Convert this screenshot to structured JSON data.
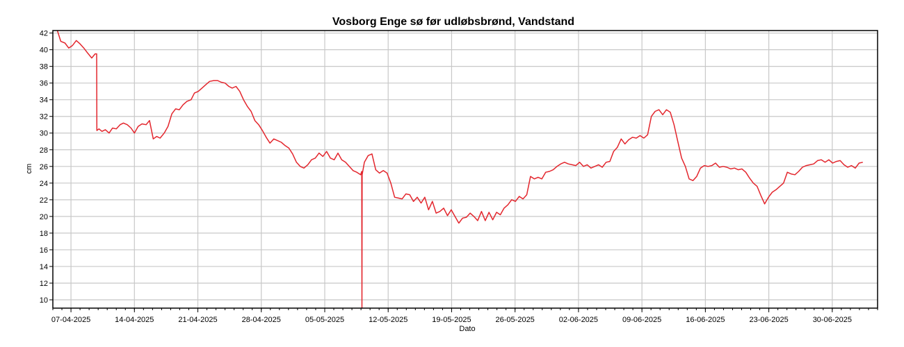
{
  "chart_data": {
    "type": "line",
    "title": "Vosborg Enge sø før udløbsbrønd, Vandstand",
    "xlabel": "Dato",
    "ylabel": "cm",
    "ylim": [
      9,
      42.3
    ],
    "xlim": [
      "2025-04-05",
      "2025-07-05"
    ],
    "y_ticks": [
      10,
      12,
      14,
      16,
      18,
      20,
      22,
      24,
      26,
      28,
      30,
      32,
      34,
      36,
      38,
      40,
      42
    ],
    "x_ticks": [
      "07-04-2025",
      "14-04-2025",
      "21-04-2025",
      "28-04-2025",
      "05-05-2025",
      "12-05-2025",
      "19-05-2025",
      "26-05-2025",
      "02-06-2025",
      "09-06-2025",
      "16-06-2025",
      "23-06-2025",
      "30-06-2025"
    ],
    "grid": true,
    "line_color": "#e3262d",
    "series": [
      {
        "x": [
          "2025-04-05 12:00",
          "2025-04-05 21:00",
          "2025-04-06 08:00",
          "2025-04-06 18:00",
          "2025-04-07 04:00",
          "2025-04-07 14:00",
          "2025-04-08 00:00",
          "2025-04-08 10:00",
          "2025-04-08 20:00",
          "2025-04-09 07:00",
          "2025-04-09 16:00",
          "2025-04-09 20:00",
          "2025-04-09 20:30",
          "2025-04-10 02:00",
          "2025-04-10 10:00",
          "2025-04-10 19:00",
          "2025-04-11 05:00",
          "2025-04-11 14:00",
          "2025-04-12 00:00",
          "2025-04-12 10:00",
          "2025-04-12 19:00",
          "2025-04-13 05:00",
          "2025-04-13 15:00",
          "2025-04-14 00:00",
          "2025-04-14 10:00",
          "2025-04-14 20:00",
          "2025-04-15 07:00",
          "2025-04-15 16:00",
          "2025-04-16 02:00",
          "2025-04-16 11:00",
          "2025-04-16 20:00",
          "2025-04-17 07:00",
          "2025-04-17 17:00",
          "2025-04-18 03:00",
          "2025-04-18 13:00",
          "2025-04-18 23:00",
          "2025-04-19 09:00",
          "2025-04-19 19:00",
          "2025-04-20 06:00",
          "2025-04-20 15:00",
          "2025-04-21 01:00",
          "2025-04-21 11:00",
          "2025-04-21 21:00",
          "2025-04-22 07:00",
          "2025-04-22 18:00",
          "2025-04-23 04:00",
          "2025-04-23 14:00",
          "2025-04-24 00:00",
          "2025-04-24 10:00",
          "2025-04-24 19:00",
          "2025-04-25 05:00",
          "2025-04-25 15:00",
          "2025-04-26 01:00",
          "2025-04-26 11:00",
          "2025-04-26 21:00",
          "2025-04-27 07:00",
          "2025-04-27 17:00",
          "2025-04-28 03:00",
          "2025-04-28 13:00",
          "2025-04-28 23:00",
          "2025-04-29 09:00",
          "2025-04-29 19:00",
          "2025-04-30 05:00",
          "2025-04-30 15:00",
          "2025-05-01 01:00",
          "2025-05-01 11:00",
          "2025-05-01 21:00",
          "2025-05-02 07:00",
          "2025-05-02 17:00",
          "2025-05-03 03:00",
          "2025-05-03 13:00",
          "2025-05-03 23:00",
          "2025-05-04 09:00",
          "2025-05-04 19:00",
          "2025-05-05 05:00",
          "2025-05-05 15:00",
          "2025-05-06 01:00",
          "2025-05-06 11:00",
          "2025-05-06 21:00",
          "2025-05-07 07:00",
          "2025-05-07 17:00",
          "2025-05-08 03:00",
          "2025-05-08 13:00",
          "2025-05-08 23:00",
          "2025-05-09 02:00",
          "2025-05-09 02:30",
          "2025-05-09 03:00",
          "2025-05-09 09:00",
          "2025-05-09 19:00",
          "2025-05-10 05:00",
          "2025-05-10 15:00",
          "2025-05-11 01:00",
          "2025-05-11 11:00",
          "2025-05-11 21:00",
          "2025-05-12 07:00",
          "2025-05-12 17:00",
          "2025-05-13 03:00",
          "2025-05-13 13:00",
          "2025-05-13 23:00",
          "2025-05-14 09:00",
          "2025-05-14 19:00",
          "2025-05-15 05:00",
          "2025-05-15 15:00",
          "2025-05-16 01:00",
          "2025-05-16 11:00",
          "2025-05-16 21:00",
          "2025-05-17 07:00",
          "2025-05-17 17:00",
          "2025-05-18 03:00",
          "2025-05-18 13:00",
          "2025-05-18 23:00",
          "2025-05-19 09:00",
          "2025-05-19 19:00",
          "2025-05-20 05:00",
          "2025-05-20 15:00",
          "2025-05-21 01:00",
          "2025-05-21 11:00",
          "2025-05-21 21:00",
          "2025-05-22 07:00",
          "2025-05-22 17:00",
          "2025-05-23 03:00",
          "2025-05-23 13:00",
          "2025-05-23 23:00",
          "2025-05-24 09:00",
          "2025-05-24 19:00",
          "2025-05-25 05:00",
          "2025-05-25 15:00",
          "2025-05-26 01:00",
          "2025-05-26 11:00",
          "2025-05-26 21:00",
          "2025-05-27 07:00",
          "2025-05-27 17:00",
          "2025-05-28 03:00",
          "2025-05-28 13:00",
          "2025-05-28 23:00",
          "2025-05-29 09:00",
          "2025-05-29 19:00",
          "2025-05-30 05:00",
          "2025-05-30 15:00",
          "2025-05-31 01:00",
          "2025-05-31 11:00",
          "2025-05-31 21:00",
          "2025-06-01 07:00",
          "2025-06-01 17:00",
          "2025-06-02 03:00",
          "2025-06-02 13:00",
          "2025-06-02 23:00",
          "2025-06-03 09:00",
          "2025-06-03 19:00",
          "2025-06-04 05:00",
          "2025-06-04 15:00",
          "2025-06-05 01:00",
          "2025-06-05 11:00",
          "2025-06-05 21:00",
          "2025-06-06 07:00",
          "2025-06-06 17:00",
          "2025-06-07 03:00",
          "2025-06-07 13:00",
          "2025-06-07 23:00",
          "2025-06-08 09:00",
          "2025-06-08 19:00",
          "2025-06-09 05:00",
          "2025-06-09 15:00",
          "2025-06-10 01:00",
          "2025-06-10 11:00",
          "2025-06-10 21:00",
          "2025-06-11 07:00",
          "2025-06-11 17:00",
          "2025-06-12 03:00",
          "2025-06-12 13:00",
          "2025-06-12 23:00",
          "2025-06-13 09:00",
          "2025-06-13 19:00",
          "2025-06-14 05:00",
          "2025-06-14 15:00",
          "2025-06-15 01:00",
          "2025-06-15 11:00",
          "2025-06-15 21:00",
          "2025-06-16 07:00",
          "2025-06-16 17:00",
          "2025-06-17 03:00",
          "2025-06-17 13:00",
          "2025-06-17 23:00",
          "2025-06-18 09:00",
          "2025-06-18 19:00",
          "2025-06-19 05:00",
          "2025-06-19 15:00",
          "2025-06-20 01:00",
          "2025-06-20 11:00",
          "2025-06-20 21:00",
          "2025-06-21 07:00",
          "2025-06-21 17:00",
          "2025-06-22 03:00",
          "2025-06-22 13:00",
          "2025-06-22 23:00",
          "2025-06-23 09:00",
          "2025-06-23 19:00",
          "2025-06-24 05:00",
          "2025-06-24 15:00",
          "2025-06-25 01:00",
          "2025-06-25 11:00",
          "2025-06-25 21:00",
          "2025-06-26 07:00",
          "2025-06-26 17:00",
          "2025-06-27 03:00",
          "2025-06-27 13:00",
          "2025-06-27 23:00",
          "2025-06-28 09:00",
          "2025-06-28 19:00",
          "2025-06-29 05:00",
          "2025-06-29 15:00",
          "2025-06-30 01:00",
          "2025-06-30 11:00",
          "2025-06-30 21:00",
          "2025-07-01 07:00",
          "2025-07-01 17:00",
          "2025-07-02 03:00",
          "2025-07-02 13:00",
          "2025-07-02 23:00",
          "2025-07-03 09:00"
        ],
        "values": [
          42.3,
          41.0,
          40.8,
          40.2,
          40.5,
          41.1,
          40.7,
          40.2,
          39.6,
          39.0,
          39.5,
          39.5,
          30.3,
          30.5,
          30.2,
          30.4,
          30.0,
          30.6,
          30.5,
          31.0,
          31.2,
          31.0,
          30.6,
          30.0,
          30.8,
          31.1,
          31.0,
          31.5,
          29.3,
          29.6,
          29.4,
          30.0,
          30.8,
          32.3,
          32.9,
          32.8,
          33.4,
          33.8,
          34.0,
          34.8,
          35.0,
          35.4,
          35.8,
          36.2,
          36.3,
          36.3,
          36.1,
          36.0,
          35.6,
          35.4,
          35.6,
          35.0,
          34.0,
          33.2,
          32.6,
          31.5,
          31.0,
          30.3,
          29.5,
          28.8,
          29.3,
          29.1,
          28.9,
          28.5,
          28.2,
          27.5,
          26.5,
          26.0,
          25.8,
          26.2,
          26.8,
          27.0,
          27.6,
          27.2,
          27.8,
          27.0,
          26.8,
          27.6,
          26.8,
          26.5,
          26.0,
          25.5,
          25.3,
          25.0,
          25.4,
          9.0,
          25.0,
          26.5,
          27.3,
          27.5,
          25.6,
          25.2,
          25.5,
          25.2,
          24.0,
          22.3,
          22.2,
          22.1,
          22.7,
          22.6,
          21.8,
          22.3,
          21.6,
          22.3,
          20.8,
          21.8,
          20.4,
          20.6,
          21.0,
          20.1,
          20.8,
          20.0,
          19.2,
          19.8,
          19.9,
          20.4,
          20.0,
          19.5,
          20.6,
          19.5,
          20.5,
          19.6,
          20.5,
          20.2,
          21.0,
          21.4,
          22.0,
          21.8,
          22.4,
          22.1,
          22.6,
          24.8,
          24.5,
          24.7,
          24.5,
          25.3,
          25.4,
          25.6,
          26.0,
          26.3,
          26.5,
          26.3,
          26.2,
          26.1,
          26.5,
          26.0,
          26.2,
          25.8,
          26.0,
          26.2,
          25.9,
          26.5,
          26.6,
          27.8,
          28.3,
          29.3,
          28.7,
          29.2,
          29.5,
          29.4,
          29.7,
          29.4,
          29.8,
          32.0,
          32.6,
          32.8,
          32.2,
          32.8,
          32.5,
          31.0,
          29.0,
          27.0,
          26.0,
          24.5,
          24.3,
          24.8,
          25.8,
          26.1,
          26.0,
          26.1,
          26.4,
          25.9,
          26.0,
          25.9,
          25.7,
          25.8,
          25.6,
          25.7,
          25.3,
          24.6,
          24.0,
          23.6,
          22.5,
          21.5,
          22.3,
          22.9,
          23.2,
          23.6,
          24.0,
          25.3,
          25.1,
          25.0,
          25.4,
          25.9,
          26.1,
          26.2,
          26.3,
          26.7,
          26.8,
          26.5,
          26.8,
          26.4,
          26.6,
          26.7,
          26.2,
          25.9,
          26.1,
          25.8,
          26.4,
          26.5
        ]
      }
    ]
  }
}
